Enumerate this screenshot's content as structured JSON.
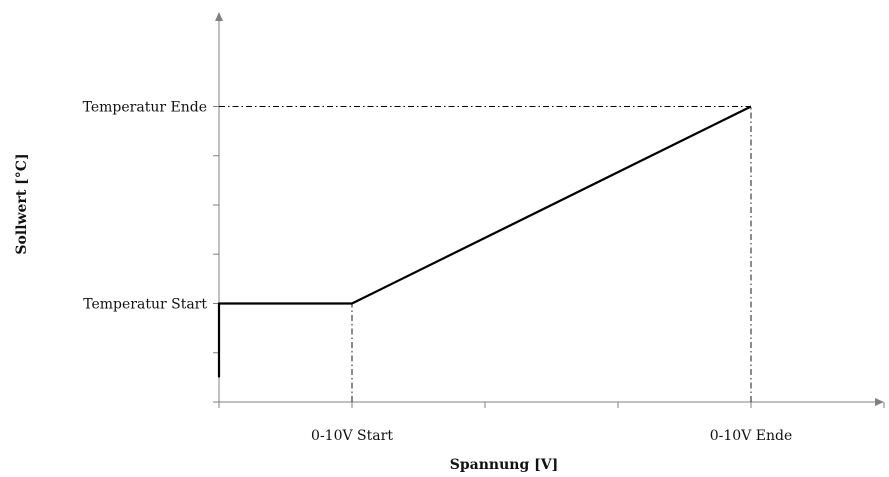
{
  "chart_data": {
    "type": "line",
    "xlabel": "Spannung [V]",
    "ylabel": "Sollwert [°C]",
    "x_tick_labels": [
      {
        "x": 1,
        "label": "0-10V Start"
      },
      {
        "x": 4,
        "label": "0-10V Ende"
      }
    ],
    "y_tick_labels": [
      {
        "y": 1,
        "label": "Temperatur Start"
      },
      {
        "y": 3,
        "label": "Temperatur Ende"
      }
    ],
    "xlim": [
      0,
      5
    ],
    "ylim": [
      0,
      3.5
    ],
    "x_tick_count": 6,
    "y_tick_count": 7,
    "grid": false,
    "series": [
      {
        "x": [
          0,
          0,
          1,
          4
        ],
        "y": [
          0.25,
          1,
          1,
          3
        ]
      }
    ],
    "reference_lines": [
      {
        "from": [
          1,
          0
        ],
        "to": [
          1,
          1
        ]
      },
      {
        "from": [
          4,
          0
        ],
        "to": [
          4,
          3
        ]
      },
      {
        "from": [
          0,
          3
        ],
        "to": [
          4,
          3
        ]
      }
    ],
    "colors": {
      "line": "#000000",
      "axis": "#808080",
      "text": "#111111"
    }
  }
}
